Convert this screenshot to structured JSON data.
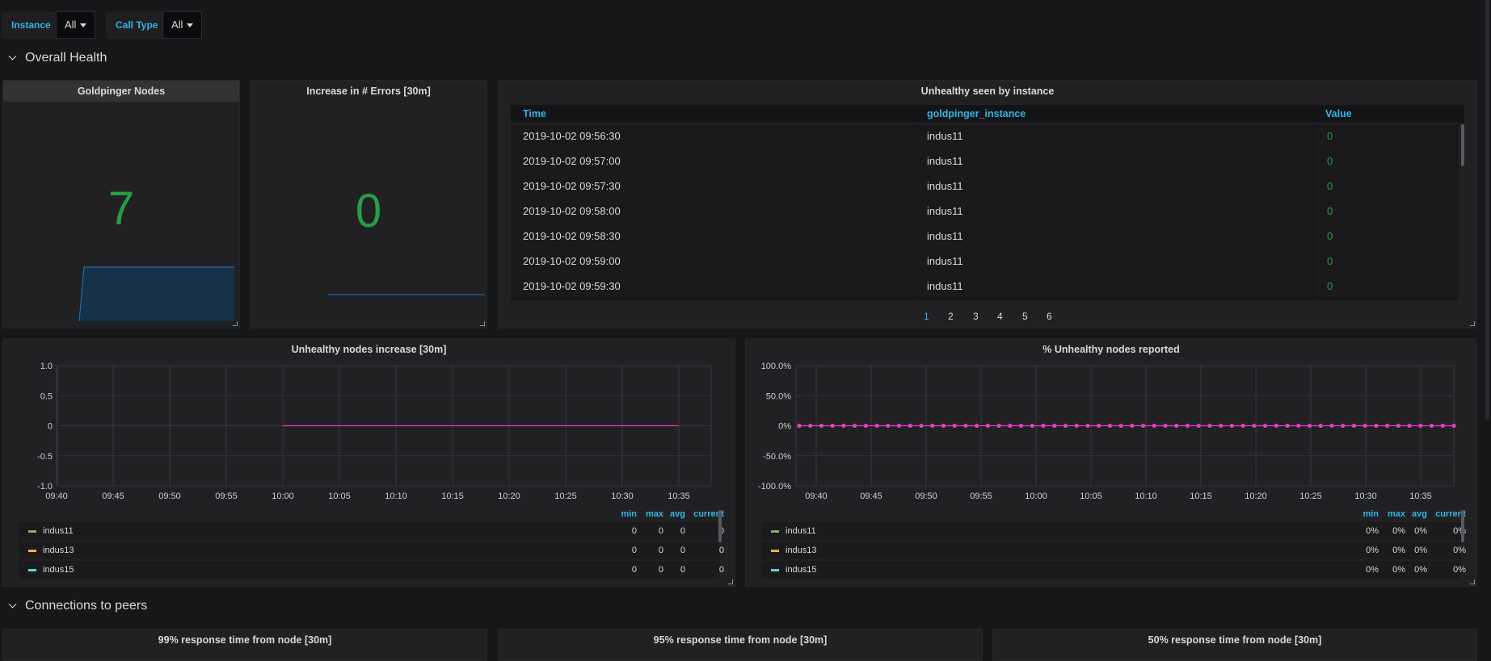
{
  "variables": [
    {
      "label": "Instance",
      "value": "All"
    },
    {
      "label": "Call Type",
      "value": "All"
    }
  ],
  "rows": {
    "overall_health": "Overall Health",
    "connections": "Connections to peers"
  },
  "panels": {
    "goldpinger_nodes": {
      "title": "Goldpinger Nodes",
      "value": "7"
    },
    "errors": {
      "title": "Increase in # Errors [30m]",
      "value": "0"
    },
    "unhealthy_table": {
      "title": "Unhealthy seen by instance",
      "columns": [
        "Time",
        "goldpinger_instance",
        "Value"
      ],
      "rows": [
        {
          "time": "2019-10-02 09:56:30",
          "instance": "indus11",
          "value": "0"
        },
        {
          "time": "2019-10-02 09:57:00",
          "instance": "indus11",
          "value": "0"
        },
        {
          "time": "2019-10-02 09:57:30",
          "instance": "indus11",
          "value": "0"
        },
        {
          "time": "2019-10-02 09:58:00",
          "instance": "indus11",
          "value": "0"
        },
        {
          "time": "2019-10-02 09:58:30",
          "instance": "indus11",
          "value": "0"
        },
        {
          "time": "2019-10-02 09:59:00",
          "instance": "indus11",
          "value": "0"
        },
        {
          "time": "2019-10-02 09:59:30",
          "instance": "indus11",
          "value": "0"
        }
      ],
      "pages": [
        "1",
        "2",
        "3",
        "4",
        "5",
        "6"
      ],
      "active_page": "1"
    },
    "unhealthy_increase": {
      "title": "Unhealthy nodes increase [30m]",
      "legend_headers": [
        "min",
        "max",
        "avg",
        "current"
      ],
      "legend": [
        {
          "name": "indus11",
          "color": "#7eb26d",
          "min": "0",
          "max": "0",
          "avg": "0",
          "current": "0"
        },
        {
          "name": "indus13",
          "color": "#eab839",
          "min": "0",
          "max": "0",
          "avg": "0",
          "current": "0"
        },
        {
          "name": "indus15",
          "color": "#6ed0e0",
          "min": "0",
          "max": "0",
          "avg": "0",
          "current": "0"
        }
      ]
    },
    "pct_unhealthy": {
      "title": "% Unhealthy nodes reported",
      "legend_headers": [
        "min",
        "max",
        "avg",
        "current"
      ],
      "legend": [
        {
          "name": "indus11",
          "color": "#7eb26d",
          "min": "0%",
          "max": "0%",
          "avg": "0%",
          "current": "0%"
        },
        {
          "name": "indus13",
          "color": "#eab839",
          "min": "0%",
          "max": "0%",
          "avg": "0%",
          "current": "0%"
        },
        {
          "name": "indus15",
          "color": "#6ed0e0",
          "min": "0%",
          "max": "0%",
          "avg": "0%",
          "current": "0%"
        }
      ]
    },
    "p99": {
      "title": "99% response time from node [30m]"
    },
    "p95": {
      "title": "95% response time from node [30m]"
    },
    "p50": {
      "title": "50% response time from node [30m]"
    }
  },
  "chart_data": [
    {
      "type": "line",
      "title": "Unhealthy nodes increase [30m]",
      "x": [
        "09:40",
        "09:45",
        "09:50",
        "09:55",
        "10:00",
        "10:05",
        "10:10",
        "10:15",
        "10:20",
        "10:25",
        "10:30",
        "10:35"
      ],
      "ylim": [
        -1.0,
        1.0
      ],
      "yticks": [
        "1.0",
        "0.5",
        "0",
        "-0.5",
        "-1.0"
      ],
      "series": [
        {
          "name": "indus11",
          "values_range": [
            "10:00",
            "10:35"
          ],
          "value": 0,
          "color": "#e040b8"
        }
      ]
    },
    {
      "type": "line",
      "title": "% Unhealthy nodes reported",
      "x": [
        "09:40",
        "09:45",
        "09:50",
        "09:55",
        "10:00",
        "10:05",
        "10:10",
        "10:15",
        "10:20",
        "10:25",
        "10:30",
        "10:35"
      ],
      "ylim": [
        -100,
        100
      ],
      "yticks": [
        "100.0%",
        "50.0%",
        "0%",
        "-50.0%",
        "-100.0%"
      ],
      "series": [
        {
          "name": "indus11",
          "value": 0,
          "color": "#e040b8",
          "points": 60
        }
      ]
    }
  ]
}
